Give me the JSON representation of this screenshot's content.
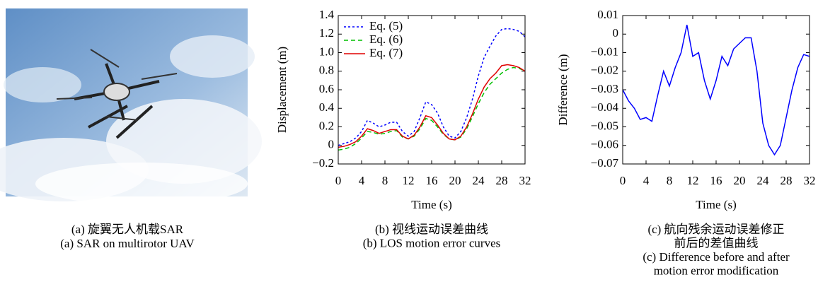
{
  "photo": {
    "caption": [
      "(a) 旋翼无人机载SAR",
      "(a) SAR on multirotor UAV"
    ]
  },
  "chart_data": [
    {
      "type": "line",
      "xlabel": "Time (s)",
      "ylabel": "Displacement (m)",
      "caption": [
        "(b) 视线运动误差曲线",
        "(b) LOS motion error curves"
      ],
      "x": [
        0,
        1,
        2,
        3,
        4,
        5,
        6,
        7,
        8,
        9,
        10,
        11,
        12,
        13,
        14,
        15,
        16,
        17,
        18,
        19,
        20,
        21,
        22,
        23,
        24,
        25,
        26,
        27,
        28,
        29,
        30,
        31,
        32
      ],
      "series": [
        {
          "name": "Eq. (5)",
          "color": "#0000ff",
          "style": "dotted",
          "values": [
            0,
            0.02,
            0.04,
            0.08,
            0.15,
            0.27,
            0.24,
            0.2,
            0.22,
            0.25,
            0.25,
            0.15,
            0.1,
            0.15,
            0.3,
            0.47,
            0.44,
            0.35,
            0.2,
            0.1,
            0.08,
            0.15,
            0.3,
            0.5,
            0.75,
            0.95,
            1.07,
            1.18,
            1.25,
            1.26,
            1.25,
            1.23,
            1.17
          ]
        },
        {
          "name": "Eq. (6)",
          "color": "#00c000",
          "style": "dashed",
          "values": [
            -0.05,
            -0.04,
            -0.02,
            0.02,
            0.08,
            0.15,
            0.14,
            0.12,
            0.13,
            0.15,
            0.16,
            0.09,
            0.07,
            0.1,
            0.18,
            0.29,
            0.27,
            0.2,
            0.12,
            0.07,
            0.06,
            0.09,
            0.18,
            0.31,
            0.45,
            0.57,
            0.66,
            0.72,
            0.78,
            0.82,
            0.84,
            0.83,
            0.8
          ]
        },
        {
          "name": "Eq. (7)",
          "color": "#e00000",
          "style": "solid",
          "values": [
            -0.02,
            -0.01,
            0.01,
            0.04,
            0.1,
            0.18,
            0.16,
            0.13,
            0.15,
            0.17,
            0.17,
            0.1,
            0.07,
            0.11,
            0.2,
            0.32,
            0.3,
            0.22,
            0.13,
            0.07,
            0.06,
            0.1,
            0.2,
            0.34,
            0.5,
            0.63,
            0.72,
            0.78,
            0.86,
            0.87,
            0.86,
            0.84,
            0.8
          ]
        }
      ],
      "xlim": [
        0,
        32
      ],
      "xticks": [
        0,
        4,
        8,
        12,
        16,
        20,
        24,
        28,
        32
      ],
      "ylim": [
        -0.2,
        1.4
      ],
      "yticks": [
        {
          "value": -0.2,
          "label": "−0.2"
        },
        0,
        0.2,
        0.4,
        0.6,
        0.8,
        {
          "value": 1,
          "label": "1.0"
        },
        1.2,
        1.4
      ],
      "legend": "upper left"
    },
    {
      "type": "line",
      "xlabel": "Time (s)",
      "ylabel": "Difference (m)",
      "caption": [
        "(c) 航向残余运动误差修正",
        "前后的差值曲线",
        "(c) Difference before and after",
        "motion error modification"
      ],
      "x": [
        0,
        1,
        2,
        3,
        4,
        5,
        6,
        7,
        8,
        9,
        10,
        11,
        12,
        13,
        14,
        15,
        16,
        17,
        18,
        19,
        20,
        21,
        22,
        23,
        24,
        25,
        26,
        27,
        28,
        29,
        30,
        31,
        32
      ],
      "values": [
        -0.03,
        -0.036,
        -0.04,
        -0.046,
        -0.045,
        -0.047,
        -0.033,
        -0.02,
        -0.028,
        -0.018,
        -0.01,
        0.005,
        -0.012,
        -0.01,
        -0.025,
        -0.035,
        -0.025,
        -0.012,
        -0.017,
        -0.008,
        -0.005,
        -0.002,
        -0.002,
        -0.02,
        -0.048,
        -0.06,
        -0.065,
        -0.06,
        -0.045,
        -0.03,
        -0.018,
        -0.011,
        -0.012
      ],
      "color": "#0000ff",
      "xlim": [
        0,
        32
      ],
      "xticks": [
        0,
        4,
        8,
        12,
        16,
        20,
        24,
        28,
        32
      ],
      "ylim": [
        -0.07,
        0.01
      ],
      "yticks": [
        {
          "value": -0.07,
          "label": "−0.07"
        },
        {
          "value": -0.06,
          "label": "−0.06"
        },
        {
          "value": -0.05,
          "label": "−0.05"
        },
        {
          "value": -0.04,
          "label": "−0.04"
        },
        {
          "value": -0.03,
          "label": "−0.03"
        },
        {
          "value": -0.02,
          "label": "−0.02"
        },
        {
          "value": -0.01,
          "label": "−0.01"
        },
        0,
        0.01
      ]
    }
  ]
}
